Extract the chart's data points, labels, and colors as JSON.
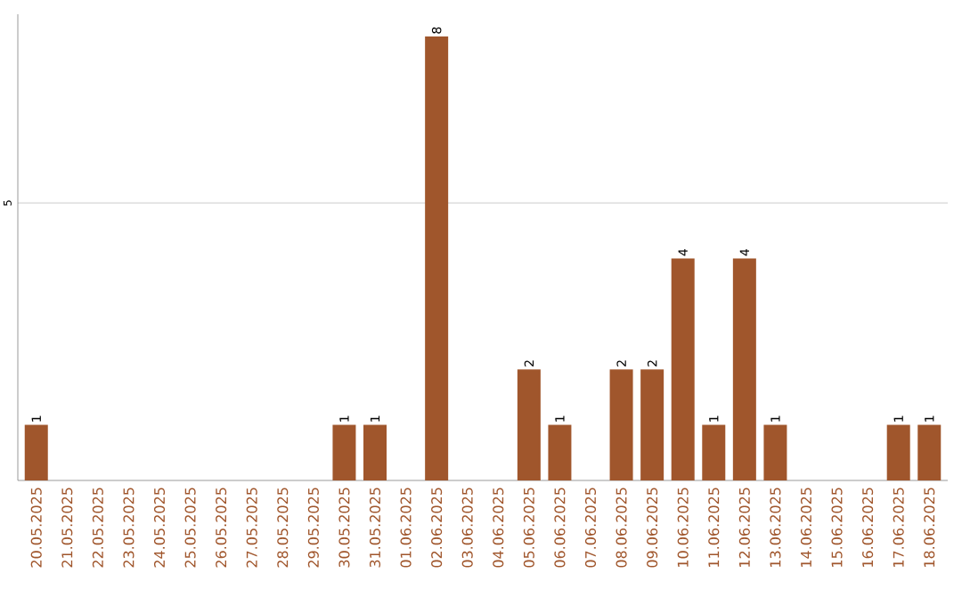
{
  "chart_data": {
    "type": "bar",
    "categories": [
      "20.05.2025",
      "21.05.2025",
      "22.05.2025",
      "23.05.2025",
      "24.05.2025",
      "25.05.2025",
      "26.05.2025",
      "27.05.2025",
      "28.05.2025",
      "29.05.2025",
      "30.05.2025",
      "31.05.2025",
      "01.06.2025",
      "02.06.2025",
      "03.06.2025",
      "04.06.2025",
      "05.06.2025",
      "06.06.2025",
      "07.06.2025",
      "08.06.2025",
      "09.06.2025",
      "10.06.2025",
      "11.06.2025",
      "12.06.2025",
      "13.06.2025",
      "14.06.2025",
      "15.06.2025",
      "16.06.2025",
      "17.06.2025",
      "18.06.2025"
    ],
    "values": [
      1,
      0,
      0,
      0,
      0,
      0,
      0,
      0,
      0,
      0,
      1,
      1,
      0,
      8,
      0,
      0,
      2,
      1,
      0,
      2,
      2,
      4,
      1,
      4,
      1,
      0,
      0,
      0,
      1,
      1
    ],
    "value_labels": [
      "1",
      null,
      null,
      null,
      null,
      null,
      null,
      null,
      null,
      null,
      "1",
      "1",
      null,
      "8",
      null,
      null,
      "2",
      "1",
      null,
      "2",
      "2",
      "4",
      "1",
      "4",
      "1",
      null,
      null,
      null,
      "1",
      "1"
    ],
    "color": "#a0562c",
    "ylim": [
      0,
      8.4
    ],
    "yticks": [
      5
    ],
    "grid": "y"
  }
}
